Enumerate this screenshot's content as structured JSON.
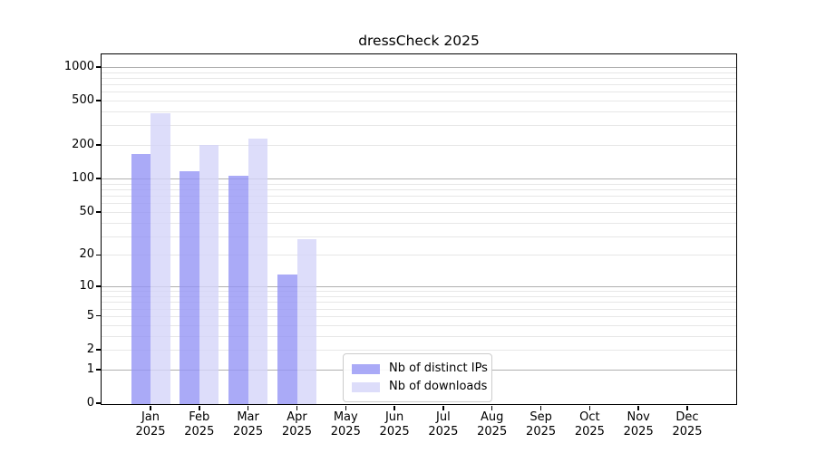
{
  "figure": {
    "background": "#ffffff"
  },
  "chart_data": {
    "type": "bar",
    "title": "dressCheck 2025",
    "xlabel": "",
    "ylabel": "",
    "year_label": "2025",
    "categories": [
      "Jan",
      "Feb",
      "Mar",
      "Apr",
      "May",
      "Jun",
      "Jul",
      "Aug",
      "Sep",
      "Oct",
      "Nov",
      "Dec"
    ],
    "series": [
      {
        "name": "Nb of distinct IPs",
        "key": "distinct-ips",
        "color": "#9595f5",
        "values": [
          165,
          117,
          107,
          13,
          0,
          0,
          0,
          0,
          0,
          0,
          0,
          0
        ]
      },
      {
        "name": "Nb of downloads",
        "key": "downloads",
        "color": "#d4d4f9",
        "values": [
          385,
          200,
          228,
          28,
          0,
          0,
          0,
          0,
          0,
          0,
          0,
          0
        ]
      }
    ],
    "yscale": "log1p",
    "yticks": [
      0,
      1,
      2,
      5,
      10,
      20,
      50,
      100,
      200,
      500,
      1000
    ],
    "ylim": [
      0,
      1294
    ],
    "grid": {
      "axis": "y",
      "major_gridlines": [
        1,
        10,
        100,
        1000
      ],
      "minor_gridlines": [
        2,
        3,
        4,
        5,
        6,
        7,
        8,
        9,
        20,
        30,
        40,
        50,
        60,
        70,
        80,
        90,
        200,
        300,
        400,
        500,
        600,
        700,
        800,
        900
      ],
      "major_color": "#b0b0b0",
      "minor_color": "#e7e7e7"
    },
    "legend_position": "lower center"
  }
}
